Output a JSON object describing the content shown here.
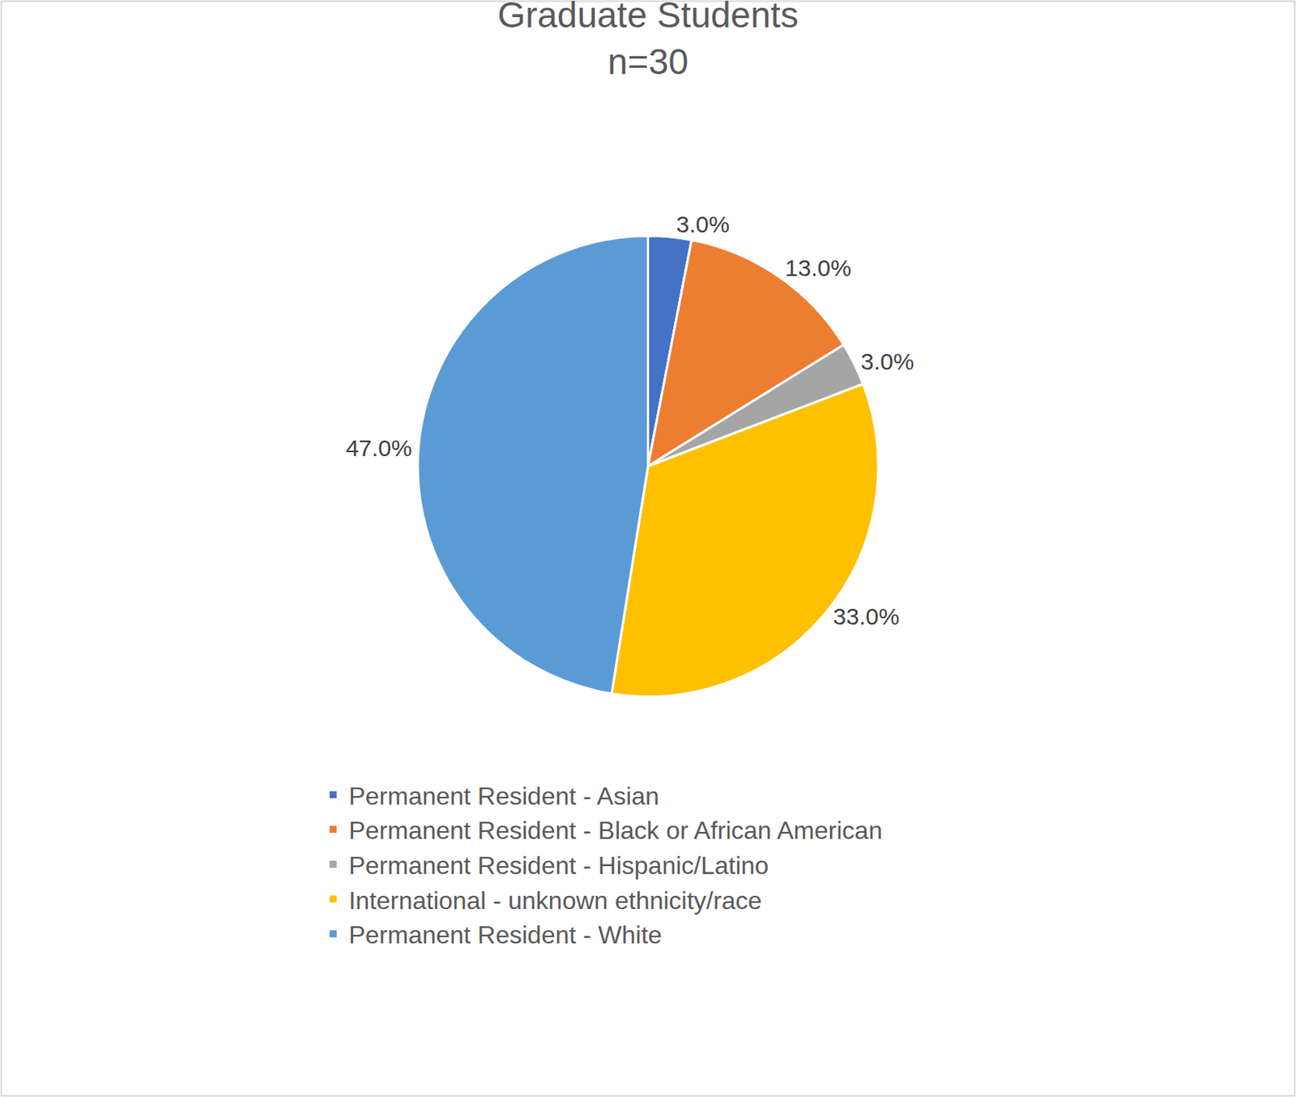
{
  "chart_data": {
    "type": "pie",
    "title": "Graduate Students",
    "subtitle": "n=30",
    "categories": [
      "Permanent Resident - Asian",
      "Permanent Resident - Black or African American",
      "Permanent Resident - Hispanic/Latino",
      "International - unknown ethnicity/race",
      "Permanent Resident - White"
    ],
    "values": [
      3.0,
      13.0,
      3.0,
      33.0,
      47.0
    ],
    "value_labels": [
      "3.0%",
      "13.0%",
      "3.0%",
      "33.0%",
      "47.0%"
    ],
    "colors": [
      "#4472c4",
      "#ed7d31",
      "#a5a5a5",
      "#ffc000",
      "#5b9bd5"
    ],
    "data_labels": true,
    "legend": "bottom"
  }
}
